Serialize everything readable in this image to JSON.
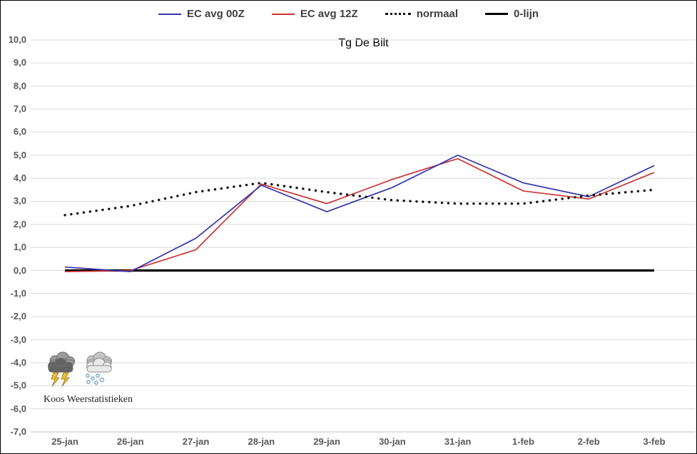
{
  "chart_data": {
    "type": "line",
    "title": "Tg De Bilt",
    "categories": [
      "25-jan",
      "26-jan",
      "27-jan",
      "28-jan",
      "29-jan",
      "30-jan",
      "31-jan",
      "1-feb",
      "2-feb",
      "3-feb"
    ],
    "series": [
      {
        "name": "EC avg 00Z",
        "color": "#3434ad",
        "style": "solid",
        "values": [
          0.15,
          -0.05,
          1.4,
          3.7,
          2.55,
          3.6,
          5.0,
          3.8,
          3.2,
          4.55
        ]
      },
      {
        "name": "EC avg 12Z",
        "color": "#cc3333",
        "style": "solid",
        "values": [
          -0.05,
          0.0,
          0.9,
          3.75,
          2.9,
          3.95,
          4.85,
          3.45,
          3.1,
          4.25
        ]
      },
      {
        "name": "normaal",
        "color": "#141414",
        "style": "dotted",
        "values": [
          2.4,
          2.8,
          3.4,
          3.8,
          3.4,
          3.05,
          2.9,
          2.9,
          3.25,
          3.5
        ]
      },
      {
        "name": "0-lijn",
        "color": "#000000",
        "style": "solid-thick",
        "values": [
          0,
          0,
          0,
          0,
          0,
          0,
          0,
          0,
          0,
          0
        ]
      }
    ],
    "ylim": [
      -7,
      10
    ],
    "ytick_step": 1,
    "ytick_labels": [
      "10,0",
      "9,0",
      "8,0",
      "7,0",
      "6,0",
      "5,0",
      "4,0",
      "3,0",
      "2,0",
      "1,0",
      "0,0",
      "-1,0",
      "-2,0",
      "-3,0",
      "-4,0",
      "-5,0",
      "-6,0",
      "-7,0"
    ],
    "grid": true,
    "legend_position": "top-center"
  },
  "branding": {
    "credit": "Koos Weerstatistieken",
    "icons": [
      "thunderstorm-icon",
      "snow-cloud-icon"
    ]
  },
  "colors": {
    "gridline": "#d9d9d9",
    "axis_line": "#bfbfbf",
    "tick_label": "#595959",
    "legend_text": "#404040",
    "series_blue": "#3434ad",
    "series_red": "#cc3333",
    "background": "#ffffff",
    "border": "#000000"
  }
}
